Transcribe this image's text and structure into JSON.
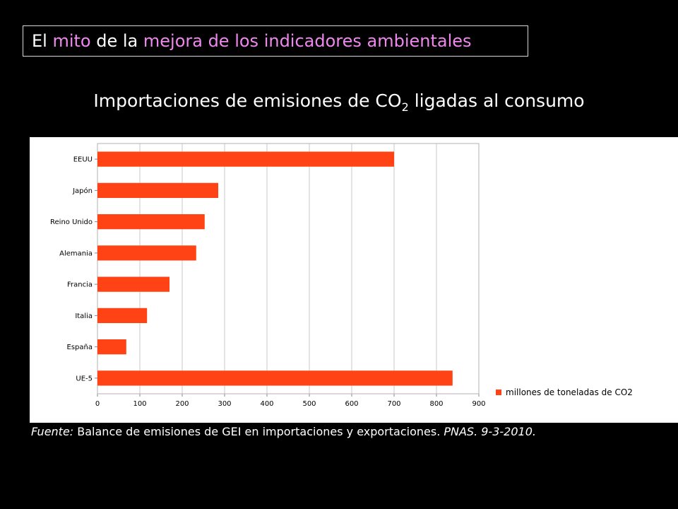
{
  "slide_title": {
    "part1": "El ",
    "part2": "mito",
    "part3": " de la ",
    "part4": "mejora de los indicadores ambientales"
  },
  "chart_heading": {
    "before_sub": "Importaciones de emisiones de CO",
    "subscript": "2",
    "after_sub": " ligadas al consumo"
  },
  "colors": {
    "background": "#000000",
    "accent_text": "#ee88ee",
    "bar": "#ff4314"
  },
  "chart_data": {
    "type": "bar",
    "orientation": "horizontal",
    "categories": [
      "EEUU",
      "Japón",
      "Reino Unido",
      "Alemania",
      "Francia",
      "Italia",
      "España",
      "UE-5"
    ],
    "series": [
      {
        "name": "millones de toneladas de CO2",
        "values": [
          700,
          285,
          253,
          233,
          170,
          117,
          68,
          838
        ]
      }
    ],
    "xlim": [
      0,
      900
    ],
    "xticks": [
      0,
      100,
      200,
      300,
      400,
      500,
      600,
      700,
      800,
      900
    ],
    "grid": "vertical",
    "legend_position": "bottom-right"
  },
  "source": {
    "label": "Fuente:",
    "text": " Balance de emisiones de GEI en importaciones y exportaciones. ",
    "citation": "PNAS. 9-3-2010."
  }
}
